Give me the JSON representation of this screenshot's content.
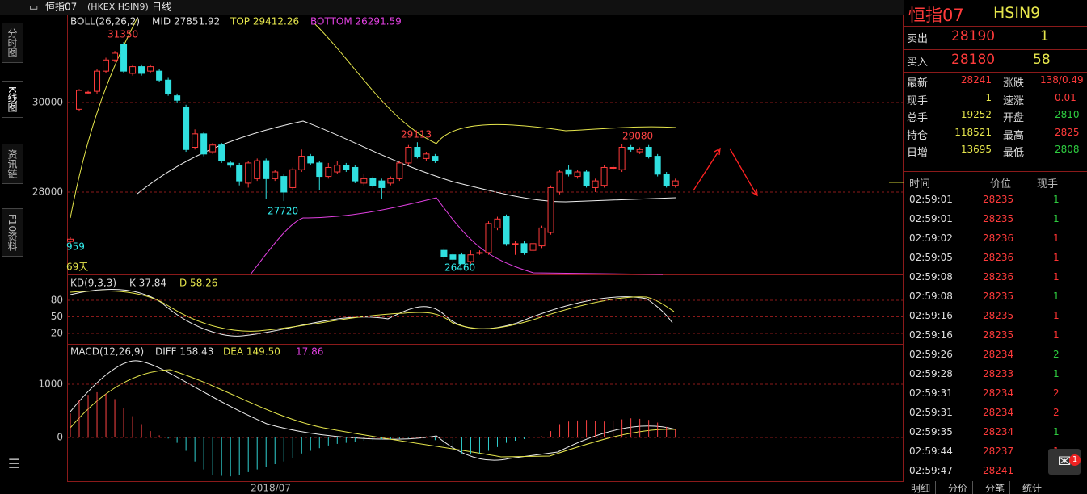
{
  "header": {
    "title": "恒指07",
    "code": "(HKEX HSIN9)",
    "period": "日线"
  },
  "sidebar": [
    "分时图",
    "K线图",
    "资讯链",
    "F10资料"
  ],
  "boll": {
    "label": "BOLL(26,26,2)",
    "mid": "MID 27851.92",
    "top": "TOP 29412.26",
    "bottom": "BOTTOM 26291.59"
  },
  "price_ticks": [
    30000,
    28000
  ],
  "annotations": [
    "31350",
    "29113",
    "29080",
    "27720",
    "26460",
    "959",
    "69天"
  ],
  "candles": [
    [
      26900,
      26950,
      27000,
      26850
    ],
    [
      29850,
      30270,
      30300,
      29800
    ],
    [
      30220,
      30230,
      30260,
      30200
    ],
    [
      30250,
      30700,
      30750,
      30200
    ],
    [
      30700,
      30950,
      31000,
      30650
    ],
    [
      30950,
      31100,
      31150,
      30900
    ],
    [
      31300,
      30700,
      31350,
      30650
    ],
    [
      30650,
      30800,
      30850,
      30600
    ],
    [
      30800,
      30650,
      30850,
      30600
    ],
    [
      30700,
      30800,
      30850,
      30650
    ],
    [
      30700,
      30500,
      30750,
      30450
    ],
    [
      30500,
      30200,
      30550,
      30150
    ],
    [
      30150,
      30050,
      30200,
      30000
    ],
    [
      29900,
      28950,
      29950,
      28900
    ],
    [
      29000,
      29300,
      29400,
      28950
    ],
    [
      29300,
      28850,
      29350,
      28800
    ],
    [
      28900,
      29050,
      29100,
      28850
    ],
    [
      29050,
      28700,
      29100,
      28650
    ],
    [
      28650,
      28600,
      28700,
      28550
    ],
    [
      28600,
      28250,
      28650,
      28150
    ],
    [
      28200,
      28650,
      28700,
      28100
    ],
    [
      28300,
      28700,
      28750,
      28250
    ],
    [
      28700,
      28300,
      28750,
      27850
    ],
    [
      28300,
      28450,
      28500,
      28250
    ],
    [
      28350,
      28000,
      28400,
      27800
    ],
    [
      28100,
      28500,
      28550,
      28050
    ],
    [
      28500,
      28800,
      28950,
      28450
    ],
    [
      28800,
      28650,
      28850,
      28600
    ],
    [
      28650,
      28350,
      28700,
      28050
    ],
    [
      28350,
      28550,
      28650,
      28300
    ],
    [
      28450,
      28600,
      28700,
      28400
    ],
    [
      28600,
      28500,
      28650,
      28450
    ],
    [
      28550,
      28250,
      28600,
      28200
    ],
    [
      28200,
      28300,
      28400,
      28150
    ],
    [
      28300,
      28150,
      28350,
      28100
    ],
    [
      28250,
      28100,
      28300,
      27850
    ],
    [
      28200,
      28300,
      28350,
      28150
    ],
    [
      28300,
      28650,
      28700,
      28250
    ],
    [
      28650,
      29000,
      29050,
      28600
    ],
    [
      29000,
      28800,
      29113,
      28750
    ],
    [
      28750,
      28850,
      28900,
      28700
    ],
    [
      28800,
      28700,
      28850,
      28650
    ],
    [
      26700,
      26550,
      26750,
      26500
    ],
    [
      26600,
      26500,
      26650,
      26450
    ],
    [
      26600,
      26400,
      26650,
      26400
    ],
    [
      26450,
      26600,
      26700,
      26400
    ],
    [
      26650,
      26650,
      26700,
      26600
    ],
    [
      26650,
      27300,
      27350,
      26600
    ],
    [
      27200,
      27400,
      27450,
      27150
    ],
    [
      27450,
      26850,
      27500,
      26800
    ],
    [
      26850,
      26850,
      26900,
      26600
    ],
    [
      26850,
      26650,
      26900,
      26600
    ],
    [
      26700,
      26850,
      26900,
      26650
    ],
    [
      26800,
      27200,
      27250,
      26750
    ],
    [
      27100,
      28100,
      28150,
      27050
    ],
    [
      28000,
      28450,
      28500,
      27950
    ],
    [
      28500,
      28400,
      28600,
      28350
    ],
    [
      28350,
      28450,
      28500,
      28300
    ],
    [
      28450,
      28150,
      28500,
      28100
    ],
    [
      28100,
      28250,
      28300,
      28000
    ],
    [
      28150,
      28550,
      28600,
      28100
    ],
    [
      28550,
      28550,
      28600,
      28500
    ],
    [
      28500,
      29000,
      29080,
      28450
    ],
    [
      29000,
      28950,
      29050,
      28900
    ],
    [
      28900,
      28950,
      29000,
      28850
    ],
    [
      29000,
      28800,
      29050,
      28750
    ],
    [
      28800,
      28400,
      28850,
      28350
    ],
    [
      28400,
      28150,
      28450,
      28100
    ],
    [
      28150,
      28250,
      28300,
      28100
    ]
  ],
  "kd": {
    "label": "KD(9,3,3)",
    "k": "K 37.84",
    "d": "D 58.26",
    "ticks": [
      80,
      50,
      20
    ]
  },
  "macd": {
    "label": "MACD(12,26,9)",
    "diff": "DIFF 158.43",
    "dea": "DEA 149.50",
    "macd": "17.86",
    "ticks": [
      1000,
      0
    ],
    "hist": [
      450,
      700,
      800,
      850,
      820,
      720,
      560,
      400,
      250,
      120,
      40,
      -20,
      -100,
      -250,
      -450,
      -600,
      -700,
      -720,
      -730,
      -700,
      -650,
      -600,
      -560,
      -500,
      -450,
      -380,
      -300,
      -250,
      -200,
      -150,
      -120,
      -100,
      -80,
      -60,
      -50,
      -40,
      -30,
      -20,
      -10,
      10,
      20,
      -50,
      -150,
      -250,
      -300,
      -320,
      -300,
      -250,
      -180,
      -100,
      -60,
      -30,
      -10,
      20,
      120,
      250,
      300,
      320,
      330,
      310,
      300,
      320,
      340,
      360,
      350,
      330,
      280,
      200,
      150
    ]
  },
  "x_label": "2018/07",
  "panel": {
    "name": "恒指07",
    "code": "HSIN9",
    "sell": [
      "卖出",
      "28190",
      "1"
    ],
    "buy": [
      "买入",
      "28180",
      "58"
    ],
    "stats": [
      [
        "最新",
        "28241",
        "涨跌",
        "138/0.49"
      ],
      [
        "现手",
        "1",
        "速涨",
        "0.01"
      ],
      [
        "总手",
        "19252",
        "开盘",
        "2810"
      ],
      [
        "持仓",
        "118521",
        "最高",
        "2825"
      ],
      [
        "日增",
        "13695",
        "最低",
        "2808"
      ]
    ],
    "ticks_header": [
      "时间",
      "价位",
      "现手"
    ],
    "ticks": [
      [
        "02:59:01",
        "28235",
        "1"
      ],
      [
        "02:59:01",
        "28235",
        "1"
      ],
      [
        "02:59:02",
        "28236",
        "1"
      ],
      [
        "02:59:05",
        "28236",
        "1"
      ],
      [
        "02:59:08",
        "28236",
        "1"
      ],
      [
        "02:59:08",
        "28235",
        "1"
      ],
      [
        "02:59:16",
        "28235",
        "1"
      ],
      [
        "02:59:16",
        "28235",
        "1"
      ],
      [
        "02:59:26",
        "28234",
        "2"
      ],
      [
        "02:59:28",
        "28233",
        "1"
      ],
      [
        "02:59:31",
        "28234",
        "2"
      ],
      [
        "02:59:31",
        "28234",
        "2"
      ],
      [
        "02:59:35",
        "28234",
        "1"
      ],
      [
        "02:59:44",
        "28237",
        "1"
      ],
      [
        "02:59:47",
        "28241",
        "1"
      ]
    ],
    "vol_colors": [
      "#2ecc40",
      "#2ecc40",
      "#ff3333",
      "#ff3333",
      "#ff3333",
      "#2ecc40",
      "#ff3333",
      "#ff3333",
      "#2ecc40",
      "#2ecc40",
      "#ff3333",
      "#ff3333",
      "#2ecc40",
      "#ff3333",
      "#ff3333"
    ],
    "tabs": [
      "明细",
      "分价",
      "分笔",
      "统计"
    ],
    "badge": "1"
  }
}
